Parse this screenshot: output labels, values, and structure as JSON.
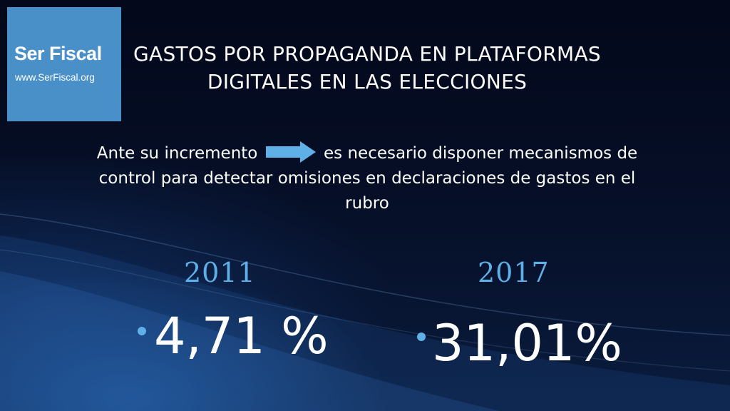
{
  "logo": {
    "name": "Ser Fiscal",
    "url": "www.SerFiscal.org",
    "color": "#4a90c8"
  },
  "title": "GASTOS POR PROPAGANDA EN PLATAFORMAS DIGITALES EN LAS ELECCIONES",
  "subtitle": {
    "before_arrow": "Ante su incremento",
    "after_arrow": "es necesario disponer mecanismos de control para detectar omisiones en declaraciones de gastos en el rubro",
    "arrow_icon": "arrow-right-icon"
  },
  "stats": [
    {
      "year": "2011",
      "value": "4,71 %"
    },
    {
      "year": "2017",
      "value": "31,01%"
    }
  ],
  "colors": {
    "accent": "#5fb0e6",
    "background": "#050b1c",
    "text": "#ffffff"
  }
}
